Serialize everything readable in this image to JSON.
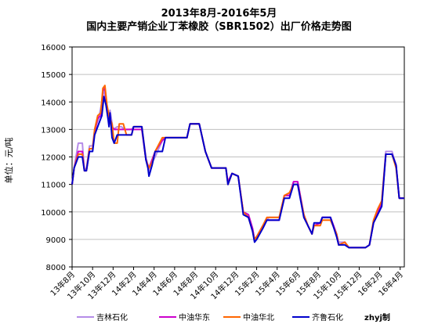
{
  "chart_data": {
    "type": "line",
    "title_line1": "2013年8月-2016年5月",
    "title_line2": "国内主要产销企业丁苯橡胶（SBR1502）出厂价格走势图",
    "ylabel": "单位：元/吨",
    "ylim": [
      8000,
      16000
    ],
    "yticks": [
      "8000",
      "9000",
      "10000",
      "11000",
      "12000",
      "13000",
      "14000",
      "15000",
      "16000"
    ],
    "x_tick_labels": [
      "13年8月",
      "13年10月",
      "13年12月",
      "14年2月",
      "14年4月",
      "14年6月",
      "14年8月",
      "14年10月",
      "14年12月",
      "15年2月",
      "15年4月",
      "15年6月",
      "15年8月",
      "15年10月",
      "15年12月",
      "16年2月",
      "16年4月"
    ],
    "credit": "zhyj制",
    "grid": true,
    "legend_position": "bottom",
    "series": [
      {
        "name": "吉林石化",
        "color": "#b58ce8",
        "points": [
          [
            0,
            11000
          ],
          [
            0.1,
            11600
          ],
          [
            0.3,
            12500
          ],
          [
            0.5,
            12500
          ],
          [
            0.6,
            11500
          ],
          [
            0.7,
            11600
          ],
          [
            0.85,
            12400
          ],
          [
            1.0,
            12400
          ],
          [
            1.1,
            13000
          ],
          [
            1.3,
            13400
          ],
          [
            1.45,
            14000
          ],
          [
            1.55,
            14500
          ],
          [
            1.65,
            14000
          ],
          [
            1.75,
            13400
          ],
          [
            1.85,
            13700
          ],
          [
            2.0,
            13000
          ],
          [
            2.2,
            13100
          ],
          [
            2.4,
            13100
          ],
          [
            2.6,
            13000
          ],
          [
            2.9,
            13000
          ],
          [
            3.0,
            13100
          ],
          [
            3.4,
            13100
          ],
          [
            3.6,
            12000
          ],
          [
            3.75,
            11500
          ],
          [
            3.9,
            11800
          ],
          [
            4.05,
            12000
          ],
          [
            4.4,
            12600
          ],
          [
            4.5,
            12700
          ],
          [
            5.6,
            12700
          ],
          [
            5.75,
            13200
          ],
          [
            6.2,
            13200
          ],
          [
            6.5,
            12200
          ],
          [
            6.8,
            11600
          ],
          [
            7.5,
            11600
          ],
          [
            7.6,
            11000
          ],
          [
            7.8,
            11400
          ],
          [
            8.1,
            11300
          ],
          [
            8.35,
            10000
          ],
          [
            8.6,
            9900
          ],
          [
            8.8,
            9400
          ],
          [
            8.9,
            9000
          ],
          [
            9.0,
            9100
          ],
          [
            9.3,
            9400
          ],
          [
            9.5,
            9700
          ],
          [
            9.6,
            9800
          ],
          [
            9.8,
            9800
          ],
          [
            10.1,
            9800
          ],
          [
            10.35,
            10600
          ],
          [
            10.6,
            10600
          ],
          [
            10.8,
            11100
          ],
          [
            11.0,
            11100
          ],
          [
            11.3,
            9900
          ],
          [
            11.5,
            9500
          ],
          [
            11.7,
            9200
          ],
          [
            11.8,
            9500
          ],
          [
            12.1,
            9600
          ],
          [
            12.2,
            9800
          ],
          [
            12.6,
            9800
          ],
          [
            12.9,
            9200
          ],
          [
            13.0,
            8900
          ],
          [
            13.3,
            8900
          ],
          [
            13.5,
            8700
          ],
          [
            14.3,
            8700
          ],
          [
            14.5,
            8800
          ],
          [
            14.7,
            9600
          ],
          [
            14.9,
            10100
          ],
          [
            15.1,
            10400
          ],
          [
            15.3,
            12200
          ],
          [
            15.6,
            12200
          ],
          [
            15.8,
            11700
          ],
          [
            15.95,
            10500
          ],
          [
            16.2,
            10500
          ]
        ]
      },
      {
        "name": "中油华东",
        "color": "#cc00cc",
        "points": [
          [
            0,
            11000
          ],
          [
            0.1,
            11600
          ],
          [
            0.3,
            12200
          ],
          [
            0.5,
            12200
          ],
          [
            0.6,
            11500
          ],
          [
            0.7,
            11500
          ],
          [
            0.85,
            12300
          ],
          [
            1.0,
            12300
          ],
          [
            1.1,
            12900
          ],
          [
            1.25,
            13400
          ],
          [
            1.4,
            13500
          ],
          [
            1.5,
            14400
          ],
          [
            1.6,
            14500
          ],
          [
            1.7,
            13800
          ],
          [
            1.8,
            13400
          ],
          [
            1.95,
            13100
          ],
          [
            2.05,
            13000
          ],
          [
            2.25,
            13000
          ],
          [
            2.5,
            13000
          ],
          [
            2.9,
            13000
          ],
          [
            3.0,
            13000
          ],
          [
            3.4,
            13000
          ],
          [
            3.6,
            11900
          ],
          [
            3.75,
            11600
          ],
          [
            3.9,
            11900
          ],
          [
            4.05,
            12200
          ],
          [
            4.4,
            12600
          ],
          [
            4.55,
            12700
          ],
          [
            5.6,
            12700
          ],
          [
            5.75,
            13200
          ],
          [
            6.2,
            13200
          ],
          [
            6.5,
            12200
          ],
          [
            6.8,
            11600
          ],
          [
            7.5,
            11600
          ],
          [
            7.6,
            11100
          ],
          [
            7.8,
            11400
          ],
          [
            8.1,
            11300
          ],
          [
            8.35,
            10000
          ],
          [
            8.6,
            9900
          ],
          [
            8.8,
            9400
          ],
          [
            8.9,
            9000
          ],
          [
            9.0,
            9100
          ],
          [
            9.3,
            9500
          ],
          [
            9.5,
            9700
          ],
          [
            9.6,
            9700
          ],
          [
            9.8,
            9700
          ],
          [
            10.1,
            9700
          ],
          [
            10.35,
            10600
          ],
          [
            10.6,
            10600
          ],
          [
            10.8,
            11100
          ],
          [
            11.0,
            11100
          ],
          [
            11.3,
            9900
          ],
          [
            11.5,
            9500
          ],
          [
            11.7,
            9200
          ],
          [
            11.8,
            9500
          ],
          [
            12.1,
            9600
          ],
          [
            12.2,
            9800
          ],
          [
            12.6,
            9800
          ],
          [
            12.9,
            9200
          ],
          [
            13.0,
            8800
          ],
          [
            13.3,
            8900
          ],
          [
            13.5,
            8700
          ],
          [
            14.3,
            8700
          ],
          [
            14.5,
            8800
          ],
          [
            14.7,
            9600
          ],
          [
            14.9,
            10000
          ],
          [
            15.1,
            10300
          ],
          [
            15.3,
            12100
          ],
          [
            15.6,
            12100
          ],
          [
            15.8,
            11700
          ],
          [
            15.95,
            10500
          ],
          [
            16.2,
            10500
          ]
        ]
      },
      {
        "name": "中油华北",
        "color": "#ff6600",
        "points": [
          [
            0,
            11000
          ],
          [
            0.1,
            11600
          ],
          [
            0.3,
            12100
          ],
          [
            0.5,
            12100
          ],
          [
            0.6,
            11500
          ],
          [
            0.7,
            11500
          ],
          [
            0.85,
            12300
          ],
          [
            1.0,
            12300
          ],
          [
            1.1,
            13000
          ],
          [
            1.25,
            13500
          ],
          [
            1.4,
            13600
          ],
          [
            1.5,
            14500
          ],
          [
            1.6,
            14600
          ],
          [
            1.7,
            13900
          ],
          [
            1.8,
            13500
          ],
          [
            1.95,
            13200
          ],
          [
            2.05,
            12500
          ],
          [
            2.2,
            12500
          ],
          [
            2.3,
            13200
          ],
          [
            2.5,
            13200
          ],
          [
            2.65,
            12800
          ],
          [
            2.9,
            12800
          ],
          [
            3.0,
            13100
          ],
          [
            3.4,
            13100
          ],
          [
            3.6,
            11900
          ],
          [
            3.75,
            11600
          ],
          [
            3.9,
            11800
          ],
          [
            4.05,
            12200
          ],
          [
            4.4,
            12700
          ],
          [
            4.55,
            12700
          ],
          [
            5.6,
            12700
          ],
          [
            5.75,
            13200
          ],
          [
            6.2,
            13200
          ],
          [
            6.5,
            12200
          ],
          [
            6.8,
            11600
          ],
          [
            7.5,
            11600
          ],
          [
            7.6,
            11000
          ],
          [
            7.8,
            11400
          ],
          [
            8.1,
            11300
          ],
          [
            8.35,
            10000
          ],
          [
            8.6,
            9800
          ],
          [
            8.8,
            9300
          ],
          [
            8.9,
            9000
          ],
          [
            9.0,
            9100
          ],
          [
            9.3,
            9500
          ],
          [
            9.5,
            9800
          ],
          [
            9.6,
            9800
          ],
          [
            9.8,
            9800
          ],
          [
            10.1,
            9800
          ],
          [
            10.35,
            10600
          ],
          [
            10.6,
            10700
          ],
          [
            10.8,
            11000
          ],
          [
            11.0,
            11000
          ],
          [
            11.3,
            9900
          ],
          [
            11.5,
            9500
          ],
          [
            11.7,
            9200
          ],
          [
            11.8,
            9500
          ],
          [
            12.1,
            9500
          ],
          [
            12.2,
            9700
          ],
          [
            12.6,
            9700
          ],
          [
            12.9,
            9200
          ],
          [
            13.0,
            8800
          ],
          [
            13.3,
            8900
          ],
          [
            13.5,
            8700
          ],
          [
            14.3,
            8700
          ],
          [
            14.5,
            8800
          ],
          [
            14.7,
            9700
          ],
          [
            14.9,
            10100
          ],
          [
            15.1,
            10400
          ],
          [
            15.3,
            12100
          ],
          [
            15.6,
            12100
          ],
          [
            15.8,
            11600
          ],
          [
            15.95,
            10500
          ],
          [
            16.2,
            10500
          ]
        ]
      },
      {
        "name": "齐鲁石化",
        "color": "#0000cc",
        "points": [
          [
            0,
            11000
          ],
          [
            0.1,
            11600
          ],
          [
            0.3,
            12000
          ],
          [
            0.5,
            12000
          ],
          [
            0.6,
            11500
          ],
          [
            0.7,
            11500
          ],
          [
            0.85,
            12200
          ],
          [
            1.0,
            12200
          ],
          [
            1.1,
            12800
          ],
          [
            1.3,
            13200
          ],
          [
            1.45,
            13500
          ],
          [
            1.55,
            14200
          ],
          [
            1.65,
            13900
          ],
          [
            1.75,
            13400
          ],
          [
            1.8,
            13100
          ],
          [
            1.85,
            13600
          ],
          [
            1.95,
            12700
          ],
          [
            2.05,
            12500
          ],
          [
            2.2,
            12800
          ],
          [
            2.4,
            12800
          ],
          [
            2.6,
            12800
          ],
          [
            2.9,
            12800
          ],
          [
            3.0,
            13100
          ],
          [
            3.4,
            13100
          ],
          [
            3.6,
            11900
          ],
          [
            3.7,
            11600
          ],
          [
            3.75,
            11300
          ],
          [
            3.9,
            11700
          ],
          [
            4.05,
            12200
          ],
          [
            4.4,
            12200
          ],
          [
            4.55,
            12700
          ],
          [
            5.6,
            12700
          ],
          [
            5.75,
            13200
          ],
          [
            6.2,
            13200
          ],
          [
            6.5,
            12200
          ],
          [
            6.8,
            11600
          ],
          [
            7.5,
            11600
          ],
          [
            7.6,
            11000
          ],
          [
            7.8,
            11400
          ],
          [
            8.1,
            11300
          ],
          [
            8.35,
            9900
          ],
          [
            8.6,
            9800
          ],
          [
            8.8,
            9300
          ],
          [
            8.9,
            8900
          ],
          [
            9.0,
            9000
          ],
          [
            9.3,
            9400
          ],
          [
            9.5,
            9700
          ],
          [
            9.6,
            9700
          ],
          [
            9.8,
            9700
          ],
          [
            10.1,
            9700
          ],
          [
            10.35,
            10500
          ],
          [
            10.6,
            10500
          ],
          [
            10.8,
            11000
          ],
          [
            11.0,
            11000
          ],
          [
            11.3,
            9800
          ],
          [
            11.5,
            9500
          ],
          [
            11.7,
            9200
          ],
          [
            11.8,
            9600
          ],
          [
            12.1,
            9600
          ],
          [
            12.2,
            9800
          ],
          [
            12.6,
            9800
          ],
          [
            12.9,
            9100
          ],
          [
            13.0,
            8800
          ],
          [
            13.3,
            8800
          ],
          [
            13.5,
            8700
          ],
          [
            14.3,
            8700
          ],
          [
            14.5,
            8800
          ],
          [
            14.7,
            9600
          ],
          [
            14.9,
            9900
          ],
          [
            15.1,
            10200
          ],
          [
            15.3,
            12100
          ],
          [
            15.6,
            12100
          ],
          [
            15.8,
            11700
          ],
          [
            15.95,
            10500
          ],
          [
            16.2,
            10500
          ]
        ]
      }
    ]
  }
}
